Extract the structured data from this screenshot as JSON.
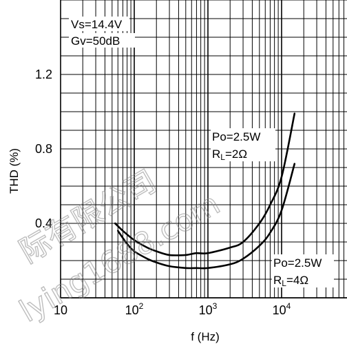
{
  "chart_data": {
    "type": "line",
    "title": "",
    "xlabel": "f (Hz)",
    "ylabel": "THD (%)",
    "xscale": "log",
    "xlim": [
      10,
      100000
    ],
    "ylim": [
      0,
      1.6
    ],
    "grid": true,
    "x_ticks": [
      {
        "value": 10,
        "label": "10"
      },
      {
        "value": 100,
        "base": "10",
        "exp": "2"
      },
      {
        "value": 1000,
        "base": "10",
        "exp": "3"
      },
      {
        "value": 10000,
        "base": "10",
        "exp": "4"
      }
    ],
    "y_ticks": [
      {
        "value": 0.4,
        "label": "0.4"
      },
      {
        "value": 0.8,
        "label": "0.8"
      },
      {
        "value": 1.2,
        "label": "1.2"
      }
    ],
    "conditions": [
      "Vs=14.4V",
      "Gv=50dB"
    ],
    "series": [
      {
        "main_label": "Po=2.5W",
        "second_label_base": "R",
        "second_label_sub": "L",
        "second_label_rest": "=2Ω",
        "x": [
          55,
          70,
          100,
          150,
          200,
          300,
          500,
          700,
          1000,
          2000,
          3000,
          5000,
          7000,
          10000,
          15000
        ],
        "y": [
          0.4,
          0.36,
          0.31,
          0.27,
          0.25,
          0.23,
          0.23,
          0.24,
          0.24,
          0.27,
          0.3,
          0.4,
          0.5,
          0.65,
          0.99
        ]
      },
      {
        "main_label": "Po=2.5W",
        "second_label_base": "R",
        "second_label_sub": "L",
        "second_label_rest": "=4Ω",
        "x": [
          60,
          80,
          100,
          150,
          200,
          300,
          500,
          700,
          1000,
          2000,
          3000,
          5000,
          7000,
          10000,
          15000
        ],
        "y": [
          0.36,
          0.29,
          0.25,
          0.21,
          0.19,
          0.17,
          0.16,
          0.16,
          0.16,
          0.18,
          0.21,
          0.28,
          0.35,
          0.47,
          0.72
        ]
      }
    ],
    "watermark": [
      "际有限公司",
      "lying1688.com"
    ]
  }
}
